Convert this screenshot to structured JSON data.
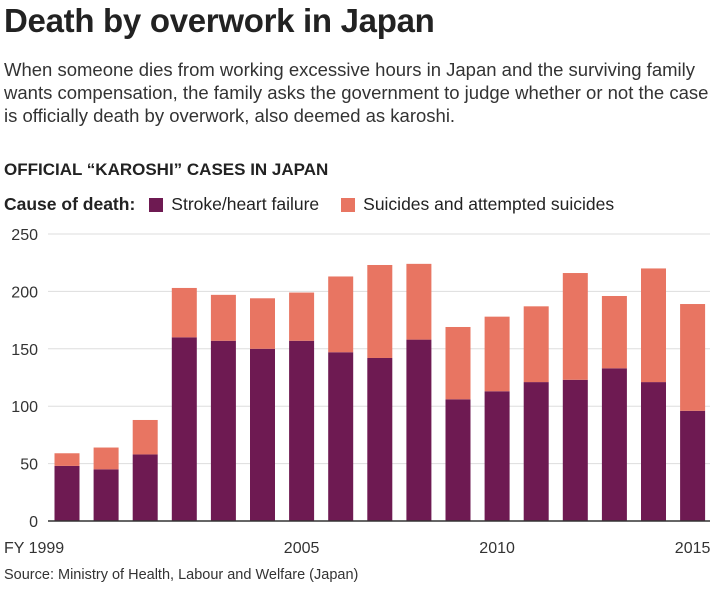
{
  "title": "Death by overwork in Japan",
  "subtitle": "When someone dies from working excessive hours in Japan and the surviving family wants compensation, the family asks the government to judge whether or not the case is officially death by overwork, also deemed as karoshi.",
  "source": "Source: Ministry of Health, Labour and Welfare (Japan)",
  "chart_data": {
    "type": "bar",
    "stacked": true,
    "title": "OFFICIAL “KAROSHI” CASES IN JAPAN",
    "legend_label": "Cause of death:",
    "legend_placement": "top",
    "categories": [
      "1999",
      "2000",
      "2001",
      "2002",
      "2003",
      "2004",
      "2005",
      "2006",
      "2007",
      "2008",
      "2009",
      "2010",
      "2011",
      "2012",
      "2013",
      "2014",
      "2015"
    ],
    "x_tick_labels": [
      {
        "category": "1999",
        "label": "FY 1999"
      },
      {
        "category": "2005",
        "label": "2005"
      },
      {
        "category": "2010",
        "label": "2010"
      },
      {
        "category": "2015",
        "label": "2015"
      }
    ],
    "series": [
      {
        "name": "Stroke/heart failure",
        "color": "#6e1a52",
        "values": [
          48,
          45,
          58,
          160,
          157,
          150,
          157,
          147,
          142,
          158,
          106,
          113,
          121,
          123,
          133,
          121,
          96
        ]
      },
      {
        "name": "Suicides and attempted suicides",
        "color": "#e87562",
        "values": [
          11,
          19,
          30,
          43,
          40,
          44,
          42,
          66,
          81,
          66,
          63,
          65,
          66,
          93,
          63,
          99,
          93
        ]
      }
    ],
    "ylim": [
      0,
      250
    ],
    "yticks": [
      0,
      50,
      100,
      150,
      200,
      250
    ],
    "grid": true
  }
}
